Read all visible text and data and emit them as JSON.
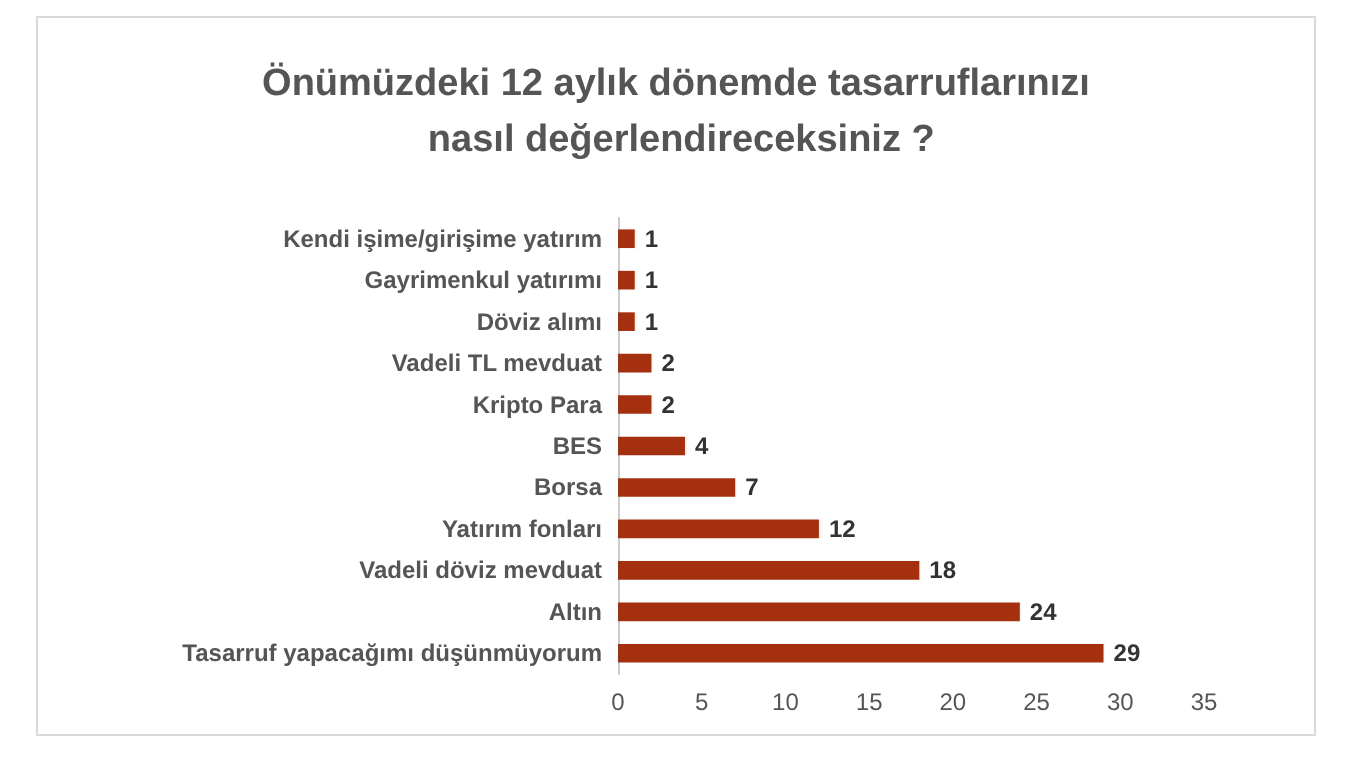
{
  "chart_data": {
    "type": "bar",
    "orientation": "horizontal",
    "title": "Önümüzdeki 12 aylık dönemde tasarruflarınızı nasıl değerlendireceksiniz ?",
    "categories": [
      "Kendi işime/girişime yatırım",
      "Gayrimenkul yatırımı",
      "Döviz alımı",
      "Vadeli TL mevduat",
      "Kripto Para",
      "BES",
      "Borsa",
      "Yatırım fonları",
      "Vadeli döviz mevduat",
      "Altın",
      "Tasarruf yapacağımı düşünmüyorum"
    ],
    "values": [
      1,
      1,
      1,
      2,
      2,
      4,
      7,
      12,
      18,
      24,
      29
    ],
    "color": "#a5300f",
    "xlim": [
      0,
      35
    ],
    "xticks": [
      0,
      5,
      10,
      15,
      20,
      25,
      30,
      35
    ],
    "grid": false,
    "data_labels": true
  }
}
